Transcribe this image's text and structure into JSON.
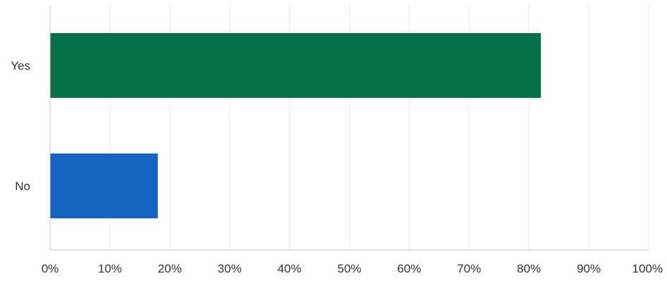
{
  "chart_data": {
    "type": "bar",
    "orientation": "horizontal",
    "categories": [
      "Yes",
      "No"
    ],
    "values": [
      82,
      18
    ],
    "colors": [
      "#06704a",
      "#1565c0"
    ],
    "x_ticks": [
      "0%",
      "10%",
      "20%",
      "30%",
      "40%",
      "50%",
      "60%",
      "70%",
      "80%",
      "90%",
      "100%"
    ],
    "xlim": [
      0,
      100
    ],
    "grid": true,
    "legend": "none"
  }
}
